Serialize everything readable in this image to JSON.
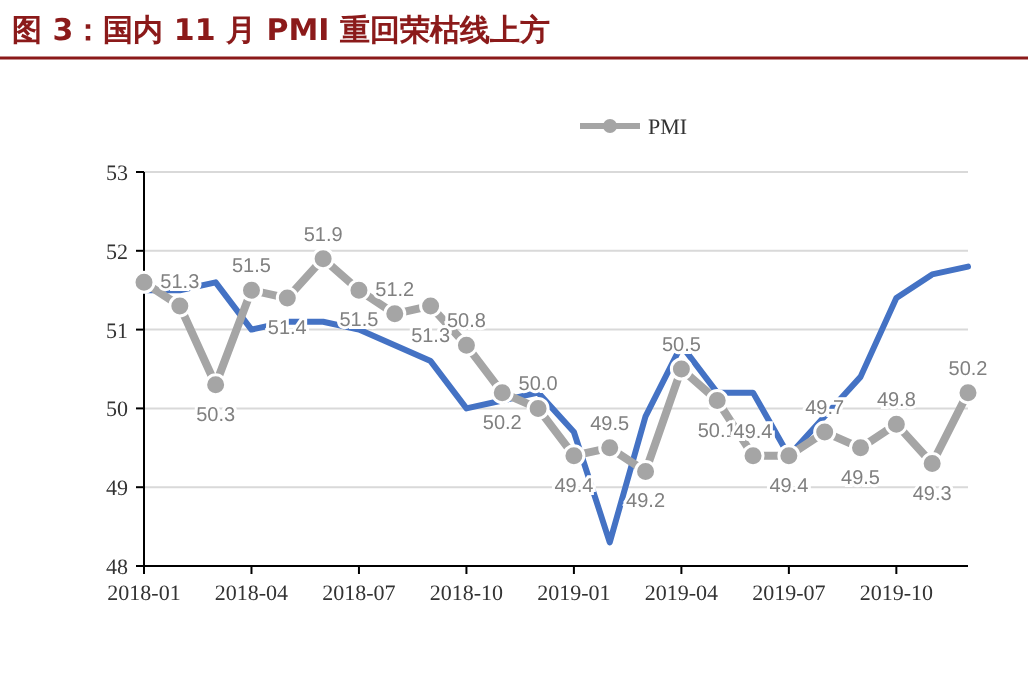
{
  "chart_data": {
    "type": "line",
    "title": "图 3：国内 11 月 PMI 重回荣枯线上方",
    "categories": [
      "2018-01",
      null,
      null,
      "2018-04",
      null,
      null,
      "2018-07",
      null,
      null,
      "2018-10",
      null,
      null,
      "2019-01",
      null,
      null,
      "2019-04",
      null,
      null,
      "2019-07",
      null,
      null,
      "2019-10",
      null,
      null
    ],
    "series": [
      {
        "color": "#4472c4",
        "marker": "none",
        "values": [
          51.5,
          51.5,
          51.6,
          51.0,
          51.1,
          51.1,
          51.0,
          50.8,
          50.6,
          50.0,
          50.1,
          50.2,
          49.7,
          48.3,
          49.9,
          50.8,
          50.2,
          50.2,
          49.4,
          49.9,
          50.4,
          51.4,
          51.7,
          51.8
        ]
      },
      {
        "name": "PMI",
        "color": "#a5a5a5",
        "marker": "circle",
        "values": [
          51.6,
          51.3,
          50.3,
          51.5,
          51.4,
          51.9,
          51.5,
          51.2,
          51.3,
          50.8,
          50.2,
          50.0,
          49.4,
          49.5,
          49.2,
          50.5,
          50.1,
          49.4,
          49.4,
          49.7,
          49.5,
          49.8,
          49.3,
          50.2
        ],
        "value_labels": [
          null,
          "51.3",
          "50.3",
          "51.5",
          "51.4",
          "51.9",
          "51.5",
          "51.2",
          "51.3",
          "50.8",
          "50.2",
          "50.0",
          "49.4",
          "49.5",
          "49.2",
          "50.5",
          "50.1",
          "49.4",
          "49.4",
          "49.7",
          "49.5",
          "49.8",
          "49.3",
          "50.2"
        ]
      }
    ],
    "ylim": [
      48,
      53
    ],
    "yticks": [
      48,
      49,
      50,
      51,
      52,
      53
    ],
    "grid": "y",
    "legend": "top"
  }
}
